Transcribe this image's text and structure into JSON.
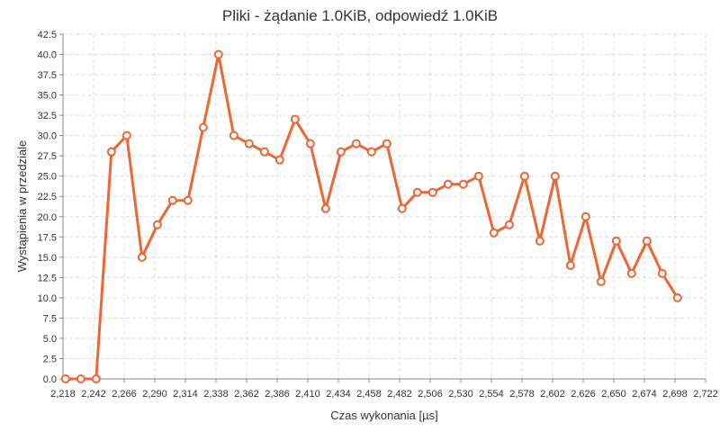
{
  "chart_data": {
    "type": "line",
    "title": "Pliki - żądanie 1.0KiB, odpowiedź 1.0KiB",
    "xlabel": "Czas wykonania [µs]",
    "ylabel": "Wystąpienia w przedziale",
    "xlim": [
      2218,
      2722
    ],
    "ylim": [
      0,
      42.5
    ],
    "grid": true,
    "x_ticks": [
      2218,
      2242,
      2266,
      2290,
      2314,
      2338,
      2362,
      2386,
      2410,
      2434,
      2458,
      2482,
      2506,
      2530,
      2554,
      2578,
      2602,
      2626,
      2650,
      2674,
      2698,
      2722
    ],
    "x_tick_labels": [
      "2,218",
      "2,242",
      "2,266",
      "2,290",
      "2,314",
      "2,338",
      "2,362",
      "2,386",
      "2,410",
      "2,434",
      "2,458",
      "2,482",
      "2,506",
      "2,530",
      "2,554",
      "2,578",
      "2,602",
      "2,626",
      "2,650",
      "2,674",
      "2,698",
      "2,722"
    ],
    "y_ticks": [
      0,
      2.5,
      5,
      7.5,
      10,
      12.5,
      15,
      17.5,
      20,
      22.5,
      25,
      27.5,
      30,
      32.5,
      35,
      37.5,
      40,
      42.5
    ],
    "y_tick_labels": [
      "0.0",
      "2.5",
      "5.0",
      "7.5",
      "10.0",
      "12.5",
      "15.0",
      "17.5",
      "20.0",
      "22.5",
      "25.0",
      "27.5",
      "30.0",
      "32.5",
      "35.0",
      "37.5",
      "40.0",
      "42.5"
    ],
    "series": [
      {
        "color": "#ee6633",
        "x": [
          2220,
          2232,
          2244,
          2256,
          2268,
          2280,
          2292,
          2304,
          2316,
          2328,
          2340,
          2352,
          2364,
          2376,
          2388,
          2400,
          2412,
          2424,
          2436,
          2448,
          2460,
          2472,
          2484,
          2496,
          2508,
          2520,
          2532,
          2544,
          2556,
          2568,
          2580,
          2592,
          2604,
          2616,
          2628,
          2640,
          2652,
          2664,
          2676,
          2688,
          2700
        ],
        "y": [
          0,
          0,
          0,
          28,
          30,
          15,
          19,
          22,
          22,
          31,
          40,
          30,
          29,
          28,
          27,
          32,
          29,
          21,
          28,
          29,
          28,
          29,
          21,
          23,
          23,
          24,
          24,
          25,
          18,
          19,
          25,
          17,
          25,
          14,
          20,
          12,
          17,
          13,
          17,
          13,
          10
        ]
      }
    ]
  }
}
